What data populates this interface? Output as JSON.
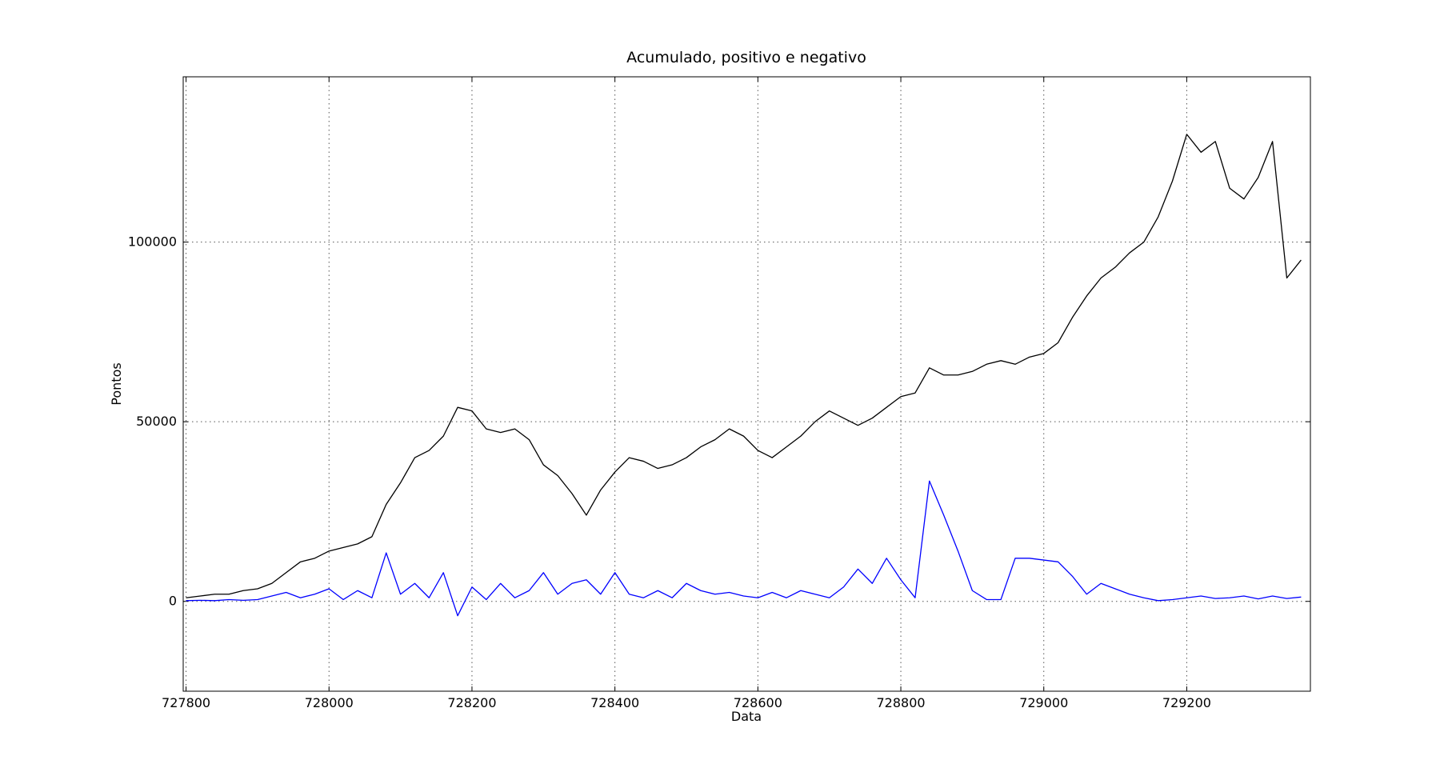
{
  "chart_data": {
    "type": "line",
    "title": "Acumulado, positivo e negativo",
    "x_label": "Data",
    "y_label": "Pontos",
    "x": [
      727800,
      727820,
      727840,
      727860,
      727880,
      727900,
      727920,
      727940,
      727960,
      727980,
      728000,
      728020,
      728040,
      728060,
      728080,
      728100,
      728120,
      728140,
      728160,
      728180,
      728200,
      728220,
      728240,
      728260,
      728280,
      728300,
      728320,
      728340,
      728360,
      728380,
      728400,
      728420,
      728440,
      728460,
      728480,
      728500,
      728520,
      728540,
      728560,
      728580,
      728600,
      728620,
      728640,
      728660,
      728680,
      728700,
      728720,
      728740,
      728760,
      728780,
      728800,
      728820,
      728840,
      728860,
      728880,
      728900,
      728920,
      728940,
      728960,
      728980,
      729000,
      729020,
      729040,
      729060,
      729080,
      729100,
      729120,
      729140,
      729160,
      729180,
      729200,
      729220,
      729240,
      729260,
      729280,
      729300,
      729320,
      729340,
      729360
    ],
    "series": [
      {
        "color": "#000000",
        "values": [
          1000,
          1500,
          2000,
          2000,
          3000,
          3500,
          5000,
          8000,
          11000,
          12000,
          14000,
          15000,
          16000,
          18000,
          27000,
          33000,
          40000,
          42000,
          46000,
          54000,
          53000,
          48000,
          47000,
          48000,
          45000,
          38000,
          35000,
          30000,
          24000,
          31000,
          36000,
          40000,
          39000,
          37000,
          38000,
          40000,
          43000,
          45000,
          48000,
          46000,
          42000,
          40000,
          43000,
          46000,
          50000,
          53000,
          51000,
          49000,
          51000,
          54000,
          57000,
          58000,
          65000,
          63000,
          63000,
          64000,
          66000,
          67000,
          66000,
          68000,
          69000,
          72000,
          79000,
          85000,
          90000,
          93000,
          97000,
          100000,
          107000,
          117000,
          130000,
          125000,
          128000,
          115000,
          112000,
          118000,
          128000,
          90000,
          95000
        ]
      },
      {
        "color": "#0000ff",
        "values": [
          200,
          300,
          200,
          500,
          300,
          500,
          1500,
          2500,
          1000,
          2000,
          3500,
          500,
          3000,
          1000,
          13500,
          2000,
          5000,
          1000,
          8000,
          -4000,
          4000,
          500,
          5000,
          1000,
          3000,
          8000,
          2000,
          5000,
          6000,
          2000,
          8000,
          2000,
          1000,
          3000,
          1000,
          5000,
          3000,
          2000,
          2500,
          1500,
          1000,
          2500,
          1000,
          3000,
          2000,
          1000,
          4000,
          9000,
          5000,
          12000,
          6000,
          1000,
          33500,
          24000,
          14000,
          3000,
          500,
          500,
          12000,
          12000,
          11500,
          11000,
          7000,
          2000,
          5000,
          3500,
          2000,
          1000,
          200,
          500,
          1000,
          1500,
          800,
          1000,
          1500,
          700,
          1500,
          800,
          1200
        ]
      }
    ],
    "xlim": [
      727796,
      729373
    ],
    "ylim": [
      -25000,
      146000
    ],
    "xticks": [
      727800,
      728000,
      728200,
      728400,
      728600,
      728800,
      729000,
      729200
    ],
    "yticks": [
      0,
      50000,
      100000
    ],
    "grid": true
  }
}
